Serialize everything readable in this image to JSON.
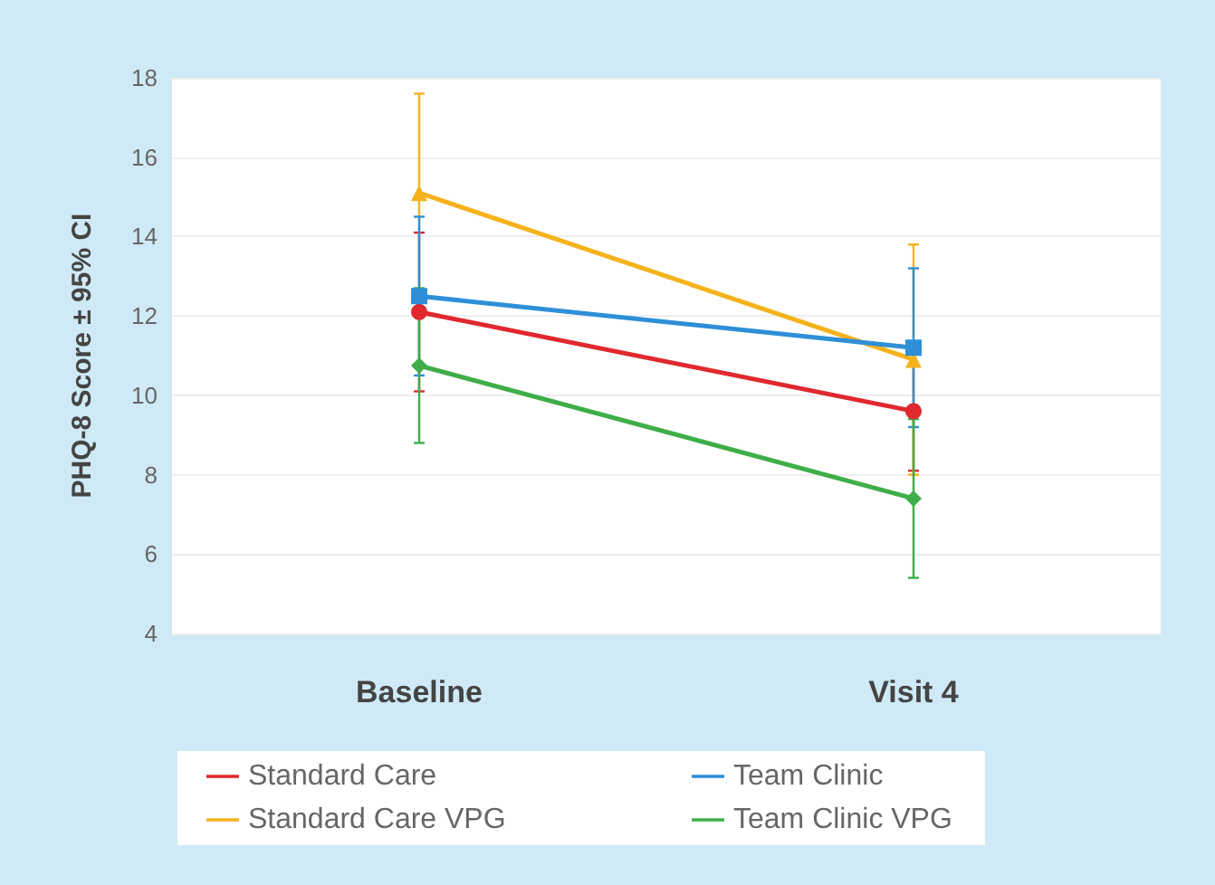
{
  "chart_data": {
    "type": "line",
    "ylabel": "PHQ-8 Score ± 95% CI",
    "categories": [
      "Baseline",
      "Visit 4"
    ],
    "series": [
      {
        "name": "Standard Care",
        "color": "#e0282e",
        "marker": "circle",
        "values": [
          12.1,
          9.6
        ],
        "errors": [
          [
            10.1,
            14.1
          ],
          [
            8.1,
            11.1
          ]
        ]
      },
      {
        "name": "Standard Care VPG",
        "color": "#f5b21b",
        "marker": "triangle",
        "values": [
          15.1,
          10.9
        ],
        "errors": [
          [
            12.6,
            17.6
          ],
          [
            8.0,
            13.8
          ]
        ]
      },
      {
        "name": "Team Clinic",
        "color": "#2e8fd8",
        "marker": "square",
        "values": [
          12.5,
          11.2
        ],
        "errors": [
          [
            10.5,
            14.5
          ],
          [
            9.2,
            13.2
          ]
        ]
      },
      {
        "name": "Team Clinic VPG",
        "color": "#3fae49",
        "marker": "diamond",
        "values": [
          10.75,
          7.4
        ],
        "errors": [
          [
            8.8,
            12.7
          ],
          [
            5.4,
            9.4
          ]
        ]
      }
    ],
    "ylim": [
      4,
      18
    ],
    "yticks": [
      4,
      6,
      8,
      10,
      12,
      14,
      16,
      18
    ],
    "grid": "y",
    "legend": "bottom"
  }
}
